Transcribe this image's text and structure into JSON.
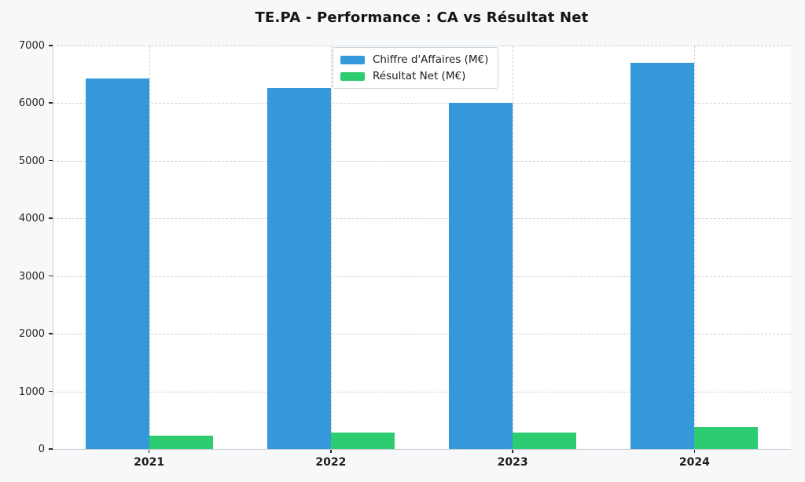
{
  "figure": {
    "background": "#f7f8fa",
    "plot_background": "#ffffff",
    "grid_color": "#b0b5bc",
    "spine_color": "#c9cdd2",
    "tick_color": "#262626"
  },
  "chart_data": {
    "type": "bar",
    "title": "TE.PA - Performance : CA vs Résultat Net",
    "categories": [
      "2021",
      "2022",
      "2023",
      "2024"
    ],
    "series": [
      {
        "name": "Chiffre d'Affaires (M€)",
        "color": "#3498db",
        "values": [
          6430,
          6260,
          6000,
          6700
        ]
      },
      {
        "name": "Résultat Net (M€)",
        "color": "#2ecc71",
        "values": [
          235,
          285,
          280,
          385
        ]
      }
    ],
    "xlabel": "",
    "ylabel": "",
    "ylim": [
      0,
      7000
    ],
    "ytick_step": 1000,
    "ytick_labels": [
      "0",
      "1000",
      "2000",
      "3000",
      "4000",
      "5000",
      "6000",
      "7000"
    ],
    "grid": "dashed, horizontal and vertical",
    "legend_position": "upper-center-inside",
    "bar_width_ratio": 0.35
  }
}
